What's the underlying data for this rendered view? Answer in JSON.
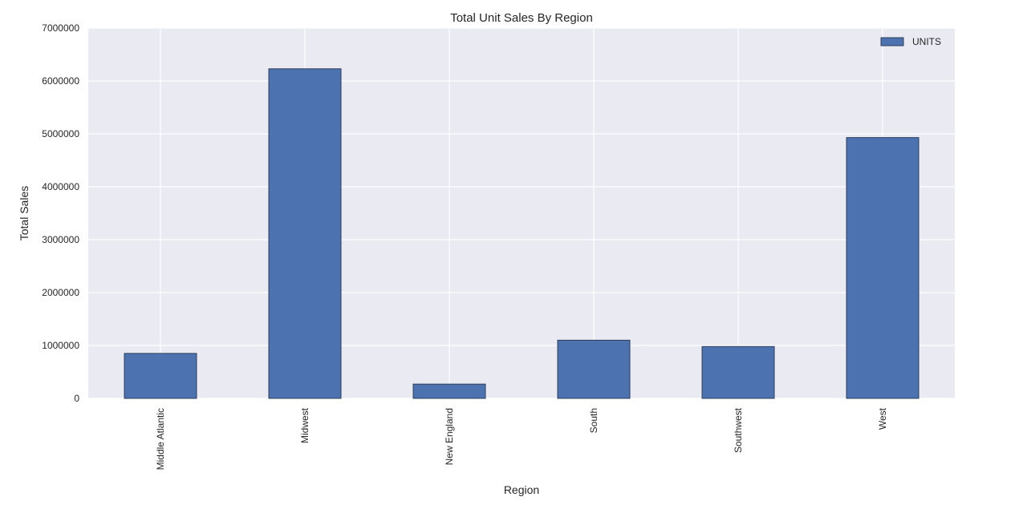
{
  "colors": {
    "bar": "#4C72B0",
    "bar_edge": "#2f3f5c",
    "plot_bg": "#EAEAF2",
    "grid": "#ffffff"
  },
  "chart_data": {
    "type": "bar",
    "title": "Total Unit Sales By Region",
    "xlabel": "Region",
    "ylabel": "Total Sales",
    "categories": [
      "Middle Atlantic",
      "Midwest",
      "New England",
      "South",
      "Southwest",
      "West"
    ],
    "series": [
      {
        "name": "UNITS",
        "values": [
          850000,
          6230000,
          270000,
          1100000,
          980000,
          4930000
        ]
      }
    ],
    "ylim": [
      0,
      7000000
    ],
    "yticks": [
      "0",
      "1000000",
      "2000000",
      "3000000",
      "4000000",
      "5000000",
      "6000000",
      "7000000"
    ],
    "grid": true,
    "legend_position": "top-right"
  }
}
